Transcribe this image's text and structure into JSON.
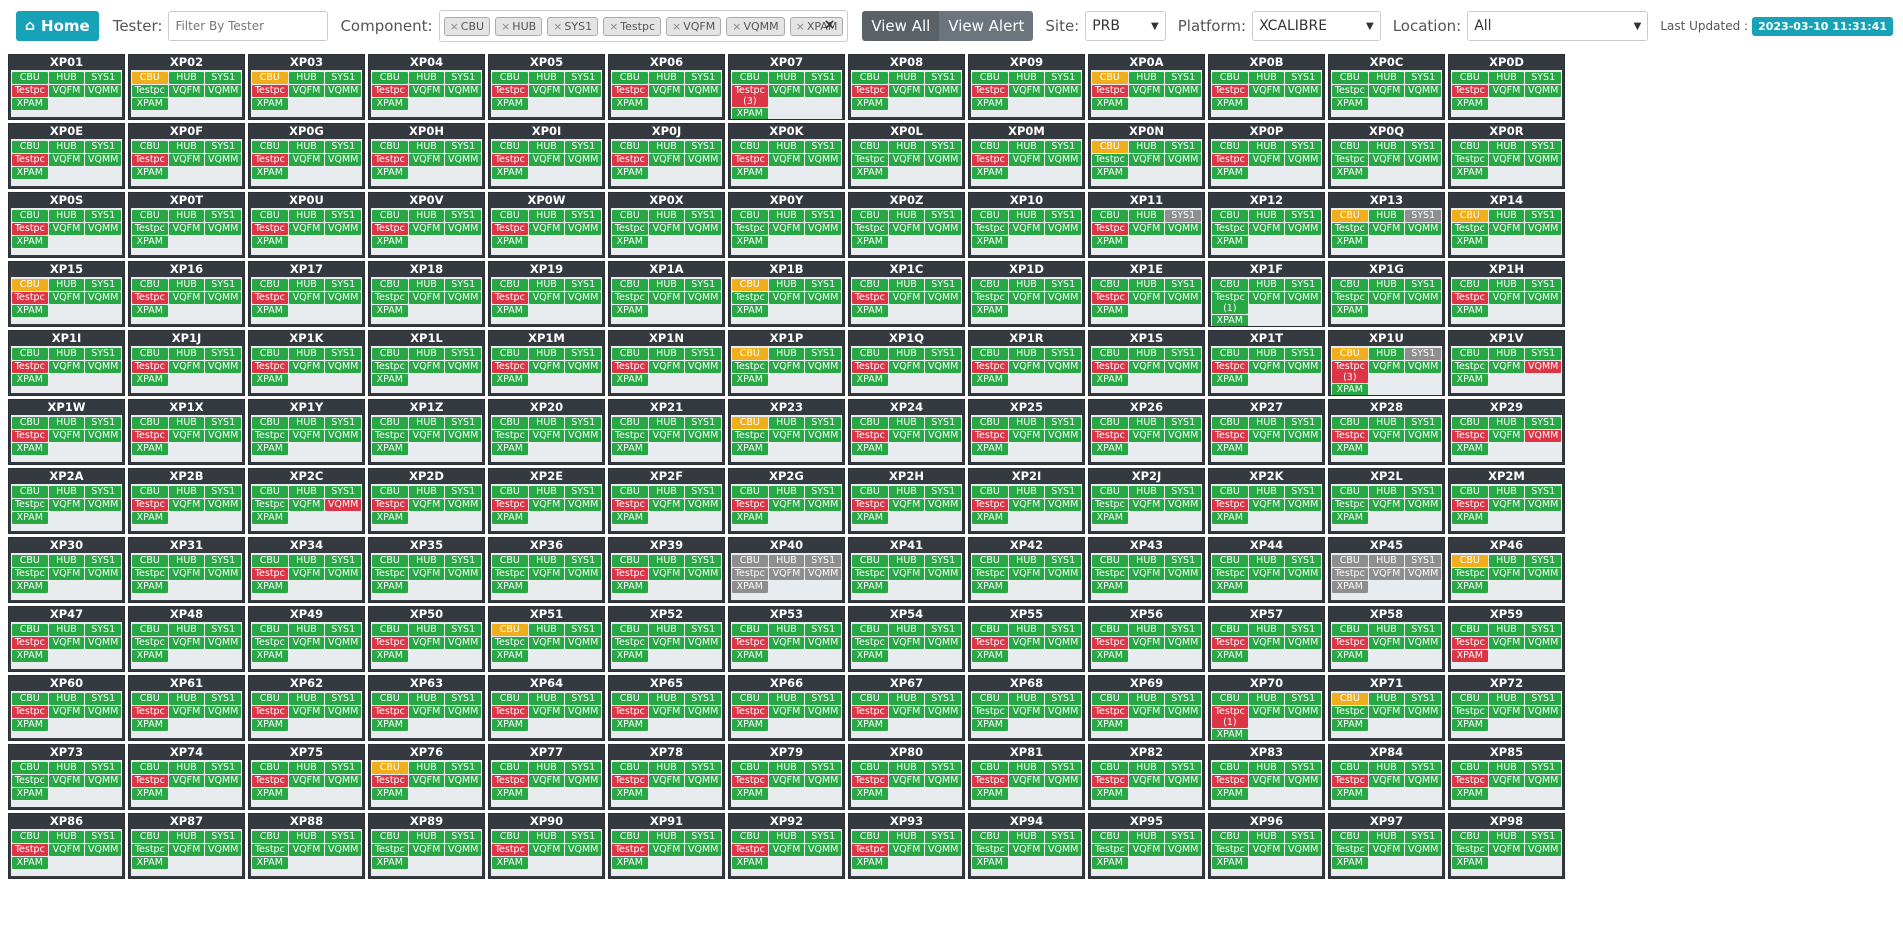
{
  "header": {
    "home_label": "Home",
    "home_icon": "home-icon",
    "tester_label": "Tester:",
    "tester_placeholder": "Filter By Tester",
    "component_label": "Component:",
    "component_tags": [
      "CBU",
      "HUB",
      "SYS1",
      "Testpc",
      "VQFM",
      "VQMM",
      "XPAM"
    ],
    "clear_label": "×",
    "view_all_label": "View All",
    "view_alert_label": "View Alert",
    "site_label": "Site:",
    "site_value": "PRB",
    "platform_label": "Platform:",
    "platform_value": "XCALIBRE",
    "location_label": "Location:",
    "location_value": "All",
    "last_updated_label": "Last Updated :",
    "last_updated_value": "2023-03-10 11:31:41"
  },
  "colors": {
    "ok": "#28a745",
    "fail": "#dc3545",
    "warn": "#f0ad1c",
    "offline": "#8e8e8e",
    "accent": "#17a2b8",
    "card_header": "#343a40"
  },
  "component_order": [
    "CBU",
    "HUB",
    "SYS1",
    "Testpc",
    "VQFM",
    "VQMM",
    "XPAM"
  ],
  "testers": [
    {
      "name": "XP01",
      "status": {
        "Testpc": "r"
      }
    },
    {
      "name": "XP02",
      "status": {
        "CBU": "y",
        "XPAM": "g"
      }
    },
    {
      "name": "XP03",
      "status": {
        "CBU": "y",
        "Testpc": "r"
      }
    },
    {
      "name": "XP04",
      "status": {
        "Testpc": "r"
      }
    },
    {
      "name": "XP05",
      "status": {
        "Testpc": "r"
      }
    },
    {
      "name": "XP06",
      "status": {
        "Testpc": "r"
      }
    },
    {
      "name": "XP07",
      "status": {
        "Testpc": "r"
      },
      "counts": {
        "Testpc": "(3)"
      }
    },
    {
      "name": "XP08",
      "status": {
        "Testpc": "r"
      }
    },
    {
      "name": "XP09",
      "status": {
        "Testpc": "r"
      }
    },
    {
      "name": "XP0A",
      "status": {
        "CBU": "y",
        "Testpc": "r"
      }
    },
    {
      "name": "XP0B",
      "status": {
        "Testpc": "r"
      }
    },
    {
      "name": "XP0C",
      "status": {}
    },
    {
      "name": "XP0D",
      "status": {
        "Testpc": "r"
      }
    },
    {
      "name": "XP0E",
      "status": {
        "Testpc": "r"
      }
    },
    {
      "name": "XP0F",
      "status": {
        "Testpc": "r"
      }
    },
    {
      "name": "XP0G",
      "status": {
        "Testpc": "r"
      }
    },
    {
      "name": "XP0H",
      "status": {
        "Testpc": "r"
      }
    },
    {
      "name": "XP0I",
      "status": {
        "Testpc": "r"
      }
    },
    {
      "name": "XP0J",
      "status": {
        "Testpc": "r"
      }
    },
    {
      "name": "XP0K",
      "status": {
        "Testpc": "r"
      }
    },
    {
      "name": "XP0L",
      "status": {}
    },
    {
      "name": "XP0M",
      "status": {
        "Testpc": "r"
      }
    },
    {
      "name": "XP0N",
      "status": {
        "CBU": "y"
      }
    },
    {
      "name": "XP0P",
      "status": {
        "Testpc": "r"
      }
    },
    {
      "name": "XP0Q",
      "status": {}
    },
    {
      "name": "XP0R",
      "status": {}
    },
    {
      "name": "XP0S",
      "status": {
        "Testpc": "r"
      }
    },
    {
      "name": "XP0T",
      "status": {}
    },
    {
      "name": "XP0U",
      "status": {
        "Testpc": "r"
      }
    },
    {
      "name": "XP0V",
      "status": {
        "Testpc": "r"
      }
    },
    {
      "name": "XP0W",
      "status": {
        "Testpc": "r"
      }
    },
    {
      "name": "XP0X",
      "status": {}
    },
    {
      "name": "XP0Y",
      "status": {}
    },
    {
      "name": "XP0Z",
      "status": {}
    },
    {
      "name": "XP10",
      "status": {}
    },
    {
      "name": "XP11",
      "status": {
        "SYS1": "s",
        "Testpc": "r"
      }
    },
    {
      "name": "XP12",
      "status": {}
    },
    {
      "name": "XP13",
      "status": {
        "CBU": "y",
        "SYS1": "s"
      }
    },
    {
      "name": "XP14",
      "status": {
        "CBU": "y"
      }
    },
    {
      "name": "XP15",
      "status": {
        "CBU": "y",
        "Testpc": "r"
      }
    },
    {
      "name": "XP16",
      "status": {
        "Testpc": "r"
      }
    },
    {
      "name": "XP17",
      "status": {
        "Testpc": "r"
      }
    },
    {
      "name": "XP18",
      "status": {}
    },
    {
      "name": "XP19",
      "status": {
        "Testpc": "r"
      }
    },
    {
      "name": "XP1A",
      "status": {}
    },
    {
      "name": "XP1B",
      "status": {
        "CBU": "y"
      }
    },
    {
      "name": "XP1C",
      "status": {
        "Testpc": "r"
      }
    },
    {
      "name": "XP1D",
      "status": {}
    },
    {
      "name": "XP1E",
      "status": {
        "Testpc": "r"
      }
    },
    {
      "name": "XP1F",
      "status": {},
      "counts": {
        "Testpc": "(1)"
      }
    },
    {
      "name": "XP1G",
      "status": {}
    },
    {
      "name": "XP1H",
      "status": {
        "Testpc": "r"
      }
    },
    {
      "name": "XP1I",
      "status": {
        "Testpc": "r"
      }
    },
    {
      "name": "XP1J",
      "status": {
        "Testpc": "r"
      }
    },
    {
      "name": "XP1K",
      "status": {
        "Testpc": "r"
      }
    },
    {
      "name": "XP1L",
      "status": {}
    },
    {
      "name": "XP1M",
      "status": {
        "Testpc": "r"
      }
    },
    {
      "name": "XP1N",
      "status": {
        "Testpc": "r"
      }
    },
    {
      "name": "XP1P",
      "status": {
        "CBU": "y"
      }
    },
    {
      "name": "XP1Q",
      "status": {
        "Testpc": "r"
      }
    },
    {
      "name": "XP1R",
      "status": {
        "Testpc": "r"
      }
    },
    {
      "name": "XP1S",
      "status": {
        "Testpc": "r"
      }
    },
    {
      "name": "XP1T",
      "status": {
        "Testpc": "r"
      }
    },
    {
      "name": "XP1U",
      "status": {
        "CBU": "y",
        "SYS1": "s",
        "Testpc": "r"
      },
      "counts": {
        "Testpc": "(3)"
      }
    },
    {
      "name": "XP1V",
      "status": {
        "VQMM": "r"
      }
    },
    {
      "name": "XP1W",
      "status": {
        "Testpc": "r"
      }
    },
    {
      "name": "XP1X",
      "status": {
        "Testpc": "r"
      }
    },
    {
      "name": "XP1Y",
      "status": {}
    },
    {
      "name": "XP1Z",
      "status": {}
    },
    {
      "name": "XP20",
      "status": {}
    },
    {
      "name": "XP21",
      "status": {}
    },
    {
      "name": "XP23",
      "status": {
        "CBU": "y"
      }
    },
    {
      "name": "XP24",
      "status": {
        "Testpc": "r"
      }
    },
    {
      "name": "XP25",
      "status": {
        "Testpc": "r"
      }
    },
    {
      "name": "XP26",
      "status": {
        "Testpc": "r"
      }
    },
    {
      "name": "XP27",
      "status": {
        "Testpc": "r"
      }
    },
    {
      "name": "XP28",
      "status": {
        "Testpc": "r"
      }
    },
    {
      "name": "XP29",
      "status": {
        "Testpc": "r",
        "VQMM": "r"
      }
    },
    {
      "name": "XP2A",
      "status": {}
    },
    {
      "name": "XP2B",
      "status": {
        "Testpc": "r"
      }
    },
    {
      "name": "XP2C",
      "status": {
        "VQMM": "r"
      }
    },
    {
      "name": "XP2D",
      "status": {
        "Testpc": "r"
      }
    },
    {
      "name": "XP2E",
      "status": {
        "Testpc": "r"
      }
    },
    {
      "name": "XP2F",
      "status": {
        "Testpc": "r"
      }
    },
    {
      "name": "XP2G",
      "status": {
        "Testpc": "r"
      }
    },
    {
      "name": "XP2H",
      "status": {
        "Testpc": "r"
      }
    },
    {
      "name": "XP2I",
      "status": {
        "Testpc": "r"
      }
    },
    {
      "name": "XP2J",
      "status": {}
    },
    {
      "name": "XP2K",
      "status": {
        "Testpc": "r"
      }
    },
    {
      "name": "XP2L",
      "status": {}
    },
    {
      "name": "XP2M",
      "status": {
        "Testpc": "r"
      }
    },
    {
      "name": "XP30",
      "status": {}
    },
    {
      "name": "XP31",
      "status": {}
    },
    {
      "name": "XP34",
      "status": {
        "Testpc": "r"
      }
    },
    {
      "name": "XP35",
      "status": {}
    },
    {
      "name": "XP36",
      "status": {}
    },
    {
      "name": "XP39",
      "status": {
        "Testpc": "r"
      }
    },
    {
      "name": "XP40",
      "status": {
        "CBU": "s",
        "HUB": "s",
        "SYS1": "s",
        "Testpc": "s",
        "VQFM": "s",
        "VQMM": "s",
        "XPAM": "s"
      }
    },
    {
      "name": "XP41",
      "status": {}
    },
    {
      "name": "XP42",
      "status": {}
    },
    {
      "name": "XP43",
      "status": {}
    },
    {
      "name": "XP44",
      "status": {}
    },
    {
      "name": "XP45",
      "status": {
        "CBU": "s",
        "HUB": "s",
        "SYS1": "s",
        "Testpc": "s",
        "VQFM": "s",
        "VQMM": "s",
        "XPAM": "s"
      }
    },
    {
      "name": "XP46",
      "status": {
        "CBU": "y"
      }
    },
    {
      "name": "XP47",
      "status": {
        "Testpc": "r"
      }
    },
    {
      "name": "XP48",
      "status": {}
    },
    {
      "name": "XP49",
      "status": {}
    },
    {
      "name": "XP50",
      "status": {
        "Testpc": "r"
      }
    },
    {
      "name": "XP51",
      "status": {
        "CBU": "y"
      }
    },
    {
      "name": "XP52",
      "status": {}
    },
    {
      "name": "XP53",
      "status": {
        "Testpc": "r"
      }
    },
    {
      "name": "XP54",
      "status": {}
    },
    {
      "name": "XP55",
      "status": {
        "Testpc": "r"
      }
    },
    {
      "name": "XP56",
      "status": {
        "Testpc": "r"
      }
    },
    {
      "name": "XP57",
      "status": {
        "Testpc": "r"
      }
    },
    {
      "name": "XP58",
      "status": {
        "Testpc": "r"
      }
    },
    {
      "name": "XP59",
      "status": {
        "Testpc": "r",
        "XPAM": "r"
      }
    },
    {
      "name": "XP60",
      "status": {
        "Testpc": "r"
      }
    },
    {
      "name": "XP61",
      "status": {
        "Testpc": "r"
      }
    },
    {
      "name": "XP62",
      "status": {
        "Testpc": "r"
      }
    },
    {
      "name": "XP63",
      "status": {
        "Testpc": "r"
      }
    },
    {
      "name": "XP64",
      "status": {
        "Testpc": "r"
      }
    },
    {
      "name": "XP65",
      "status": {
        "Testpc": "r"
      }
    },
    {
      "name": "XP66",
      "status": {
        "Testpc": "r"
      }
    },
    {
      "name": "XP67",
      "status": {
        "Testpc": "r"
      }
    },
    {
      "name": "XP68",
      "status": {}
    },
    {
      "name": "XP69",
      "status": {
        "Testpc": "r"
      }
    },
    {
      "name": "XP70",
      "status": {
        "Testpc": "r"
      },
      "counts": {
        "Testpc": "(1)"
      }
    },
    {
      "name": "XP71",
      "status": {
        "CBU": "y"
      }
    },
    {
      "name": "XP72",
      "status": {}
    },
    {
      "name": "XP73",
      "status": {}
    },
    {
      "name": "XP74",
      "status": {
        "Testpc": "r"
      }
    },
    {
      "name": "XP75",
      "status": {
        "Testpc": "r"
      }
    },
    {
      "name": "XP76",
      "status": {
        "CBU": "y",
        "Testpc": "r"
      }
    },
    {
      "name": "XP77",
      "status": {
        "Testpc": "r"
      }
    },
    {
      "name": "XP78",
      "status": {
        "Testpc": "r"
      }
    },
    {
      "name": "XP79",
      "status": {
        "Testpc": "r"
      }
    },
    {
      "name": "XP80",
      "status": {
        "Testpc": "r"
      }
    },
    {
      "name": "XP81",
      "status": {
        "Testpc": "r"
      }
    },
    {
      "name": "XP82",
      "status": {
        "Testpc": "r"
      }
    },
    {
      "name": "XP83",
      "status": {
        "Testpc": "r"
      }
    },
    {
      "name": "XP84",
      "status": {
        "Testpc": "r"
      }
    },
    {
      "name": "XP85",
      "status": {
        "Testpc": "r"
      }
    },
    {
      "name": "XP86",
      "status": {
        "Testpc": "r"
      }
    },
    {
      "name": "XP87",
      "status": {}
    },
    {
      "name": "XP88",
      "status": {}
    },
    {
      "name": "XP89",
      "status": {}
    },
    {
      "name": "XP90",
      "status": {
        "Testpc": "r"
      }
    },
    {
      "name": "XP91",
      "status": {
        "Testpc": "r"
      }
    },
    {
      "name": "XP92",
      "status": {
        "Testpc": "r"
      }
    },
    {
      "name": "XP93",
      "status": {
        "Testpc": "r"
      }
    },
    {
      "name": "XP94",
      "status": {}
    },
    {
      "name": "XP95",
      "status": {}
    },
    {
      "name": "XP96",
      "status": {}
    },
    {
      "name": "XP97",
      "status": {}
    },
    {
      "name": "XP98",
      "status": {}
    }
  ]
}
